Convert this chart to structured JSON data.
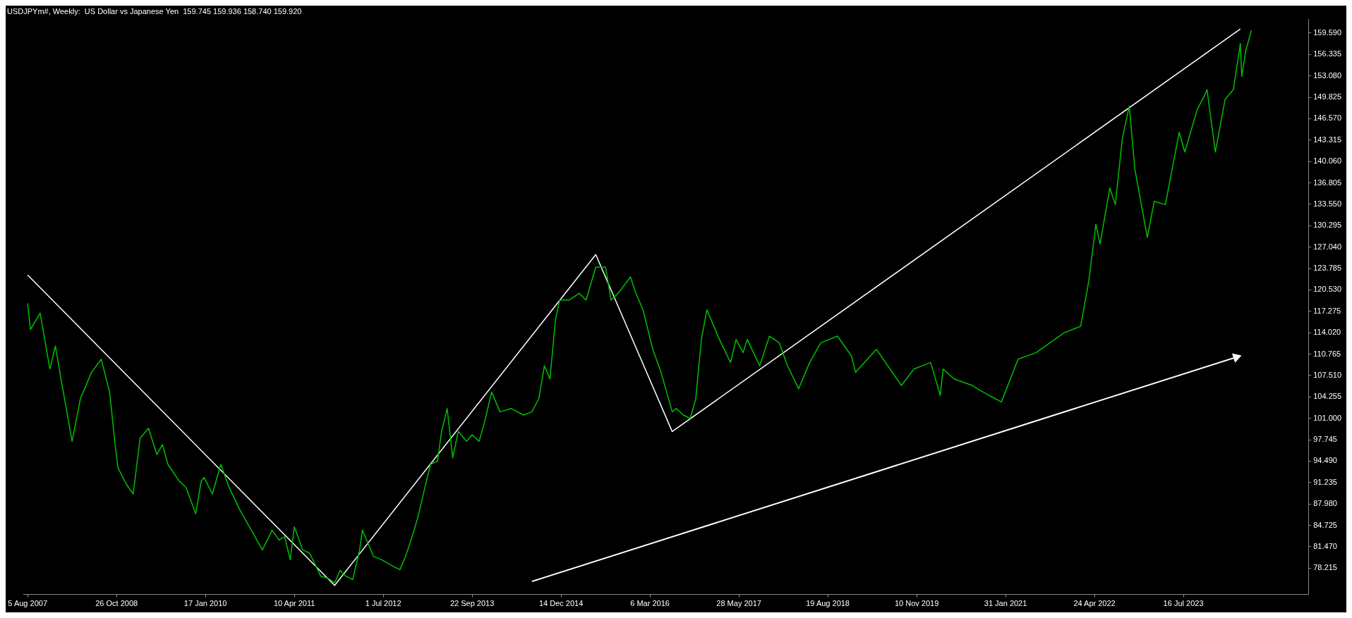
{
  "chart_data": {
    "type": "line",
    "title": "USDJPYm#, Weekly:  US Dollar vs Japanese Yen  159.745 159.936 158.740 159.920",
    "grid": false,
    "legend": false,
    "xlim": [
      "2007-07-15",
      "2025-04-06"
    ],
    "xticks": [
      {
        "value": "2007-08-05",
        "label": "5 Aug 2007"
      },
      {
        "value": "2008-10-26",
        "label": "26 Oct 2008"
      },
      {
        "value": "2010-01-17",
        "label": "17 Jan 2010"
      },
      {
        "value": "2011-04-10",
        "label": "10 Apr 2011"
      },
      {
        "value": "2012-07-01",
        "label": "1 Jul 2012"
      },
      {
        "value": "2013-09-22",
        "label": "22 Sep 2013"
      },
      {
        "value": "2014-12-14",
        "label": "14 Dec 2014"
      },
      {
        "value": "2016-03-06",
        "label": "6 Mar 2016"
      },
      {
        "value": "2017-05-28",
        "label": "28 May 2017"
      },
      {
        "value": "2018-08-19",
        "label": "19 Aug 2018"
      },
      {
        "value": "2019-11-10",
        "label": "10 Nov 2019"
      },
      {
        "value": "2021-01-31",
        "label": "31 Jan 2021"
      },
      {
        "value": "2022-04-24",
        "label": "24 Apr 2022"
      },
      {
        "value": "2023-07-16",
        "label": "16 Jul 2023"
      }
    ],
    "ylim": [
      74.2,
      161.7
    ],
    "yticks": [
      78.215,
      {
        "value": 81.47,
        "label": "81.470"
      },
      84.725,
      {
        "value": 87.98,
        "label": "87.980"
      },
      91.235,
      {
        "value": 94.49,
        "label": "94.490"
      },
      97.745,
      {
        "value": 101,
        "label": "101.000"
      },
      104.255,
      {
        "value": 107.51,
        "label": "107.510"
      },
      110.765,
      {
        "value": 114.02,
        "label": "114.020"
      },
      117.275,
      {
        "value": 120.53,
        "label": "120.530"
      },
      123.785,
      {
        "value": 127.04,
        "label": "127.040"
      },
      130.295,
      {
        "value": 133.55,
        "label": "133.550"
      },
      136.805,
      {
        "value": 140.06,
        "label": "140.060"
      },
      143.315,
      {
        "value": 146.57,
        "label": "146.570"
      },
      149.825,
      {
        "value": 153.08,
        "label": "153.080"
      },
      156.335,
      {
        "value": 159.59,
        "label": "159.590"
      }
    ],
    "series": [
      {
        "color": "#00c000",
        "x": [
          "2007-08-05",
          "2007-08-19",
          "2007-10-07",
          "2007-11-25",
          "2007-12-23",
          "2008-01-20",
          "2008-03-16",
          "2008-04-27",
          "2008-06-22",
          "2008-08-10",
          "2008-09-21",
          "2008-10-19",
          "2008-11-02",
          "2008-12-14",
          "2009-01-18",
          "2009-02-22",
          "2009-04-05",
          "2009-05-17",
          "2009-06-14",
          "2009-07-12",
          "2009-09-06",
          "2009-10-11",
          "2009-11-29",
          "2009-12-27",
          "2010-01-10",
          "2010-02-21",
          "2010-04-04",
          "2010-05-16",
          "2010-07-11",
          "2010-09-05",
          "2010-10-31",
          "2010-12-19",
          "2011-01-23",
          "2011-02-20",
          "2011-03-20",
          "2011-04-10",
          "2011-05-22",
          "2011-06-26",
          "2011-08-21",
          "2011-09-25",
          "2011-10-30",
          "2011-11-27",
          "2011-12-25",
          "2012-01-29",
          "2012-03-04",
          "2012-03-18",
          "2012-05-13",
          "2012-06-24",
          "2012-08-19",
          "2012-09-23",
          "2012-10-21",
          "2012-11-18",
          "2012-12-23",
          "2013-01-27",
          "2013-02-24",
          "2013-03-31",
          "2013-04-21",
          "2013-05-19",
          "2013-06-16",
          "2013-07-14",
          "2013-08-25",
          "2013-09-22",
          "2013-10-27",
          "2013-11-24",
          "2013-12-29",
          "2014-02-09",
          "2014-04-06",
          "2014-06-08",
          "2014-07-20",
          "2014-08-24",
          "2014-09-21",
          "2014-10-19",
          "2014-11-16",
          "2014-12-07",
          "2015-01-25",
          "2015-03-15",
          "2015-04-19",
          "2015-06-07",
          "2015-07-26",
          "2015-08-23",
          "2015-09-27",
          "2015-11-29",
          "2015-12-20",
          "2016-01-31",
          "2016-03-20",
          "2016-05-01",
          "2016-06-26",
          "2016-07-17",
          "2016-08-21",
          "2016-09-25",
          "2016-10-23",
          "2016-11-20",
          "2016-12-18",
          "2017-02-19",
          "2017-04-16",
          "2017-05-14",
          "2017-06-18",
          "2017-07-09",
          "2017-09-10",
          "2017-10-29",
          "2017-12-17",
          "2018-01-28",
          "2018-03-25",
          "2018-05-20",
          "2018-07-15",
          "2018-10-07",
          "2018-12-16",
          "2019-01-06",
          "2019-04-21",
          "2019-08-25",
          "2019-10-27",
          "2020-01-19",
          "2020-03-08",
          "2020-03-22",
          "2020-05-17",
          "2020-08-16",
          "2020-11-08",
          "2021-01-10",
          "2021-04-04",
          "2021-07-04",
          "2021-11-21",
          "2022-02-13",
          "2022-03-27",
          "2022-05-01",
          "2022-05-22",
          "2022-07-10",
          "2022-08-07",
          "2022-09-11",
          "2022-10-16",
          "2022-11-13",
          "2023-01-15",
          "2023-02-19",
          "2023-04-16",
          "2023-06-25",
          "2023-07-23",
          "2023-09-24",
          "2023-10-29",
          "2023-11-12",
          "2023-12-24",
          "2024-02-11",
          "2024-03-24",
          "2024-04-28",
          "2024-05-05",
          "2024-05-26",
          "2024-06-23"
        ],
        "values": [
          118.5,
          114.5,
          117.0,
          108.5,
          112.0,
          107.0,
          97.5,
          104.0,
          108.0,
          110.0,
          105.0,
          97.0,
          93.5,
          91.0,
          89.5,
          98.0,
          99.5,
          95.5,
          97.0,
          94.0,
          91.5,
          90.5,
          86.5,
          91.5,
          92.0,
          89.5,
          94.0,
          90.5,
          87.0,
          84.0,
          81.0,
          84.0,
          82.5,
          83.0,
          79.5,
          84.5,
          81.0,
          80.5,
          77.0,
          76.7,
          76.0,
          77.9,
          77.0,
          76.5,
          81.0,
          84.0,
          80.0,
          79.5,
          78.5,
          78.0,
          80.0,
          82.5,
          86.0,
          90.5,
          94.0,
          94.5,
          99.0,
          102.5,
          95.0,
          99.0,
          97.5,
          98.5,
          97.5,
          100.5,
          105.0,
          102.0,
          102.5,
          101.5,
          102.0,
          104.0,
          109.0,
          107.0,
          116.0,
          119.0,
          119.0,
          120.0,
          119.0,
          124.0,
          124.0,
          119.0,
          120.0,
          122.5,
          120.5,
          117.5,
          111.5,
          108.0,
          102.0,
          102.5,
          101.5,
          101.0,
          104.0,
          113.0,
          117.5,
          113.0,
          109.5,
          113.0,
          111.0,
          113.0,
          109.0,
          113.5,
          112.5,
          109.0,
          105.5,
          109.5,
          112.5,
          113.5,
          110.5,
          108.0,
          111.5,
          106.0,
          108.5,
          109.5,
          104.5,
          108.5,
          107.0,
          106.0,
          104.5,
          103.5,
          110.0,
          111.0,
          114.0,
          115.0,
          122.0,
          130.5,
          127.5,
          136.0,
          133.5,
          143.5,
          148.5,
          139.0,
          128.5,
          134.0,
          133.5,
          144.5,
          141.5,
          148.0,
          150.0,
          151.0,
          141.5,
          149.5,
          151.0,
          158.0,
          153.0,
          157.0,
          160.0
        ]
      },
      {
        "color": "#ffffff",
        "x": [
          "2007-08-05",
          "2011-10-30",
          "2015-06-07",
          "2016-06-26",
          "2024-04-28"
        ],
        "values": [
          122.8,
          75.6,
          125.9,
          99.0,
          160.2
        ]
      },
      {
        "color": "#ffffff",
        "marker": "triangle",
        "x": [
          "2014-07-20",
          "2024-04-07"
        ],
        "values": [
          76.2,
          110.3
        ]
      }
    ]
  }
}
